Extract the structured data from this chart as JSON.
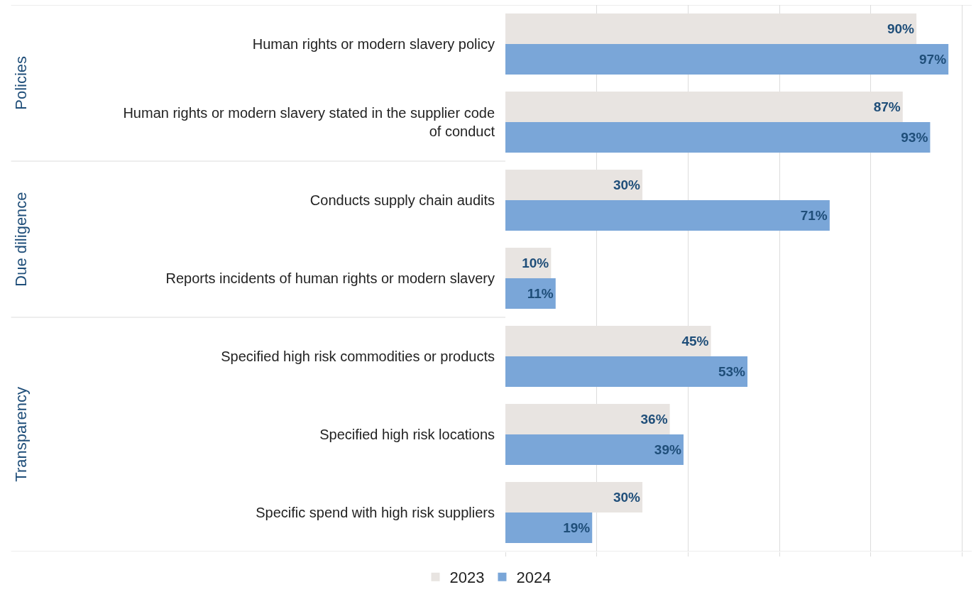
{
  "chart_data": {
    "type": "bar",
    "orientation": "horizontal",
    "categories": [
      "Human rights or modern slavery policy",
      "Human rights or modern slavery stated in the supplier code of conduct",
      "Conducts supply chain audits",
      "Reports incidents of human rights or modern slavery",
      "Specified high risk commodities or products",
      "Specified high risk locations",
      "Specific spend with high risk suppliers"
    ],
    "series": [
      {
        "name": "2023",
        "color": "#e8e4e1",
        "values": [
          90,
          87,
          30,
          10,
          45,
          36,
          30
        ],
        "value_labels": [
          "90%",
          "87%",
          "30%",
          "10%",
          "45%",
          "36%",
          "30%"
        ]
      },
      {
        "name": "2024",
        "color": "#7aa6d8",
        "values": [
          97,
          93,
          71,
          11,
          53,
          39,
          19
        ],
        "value_labels": [
          "97%",
          "93%",
          "71%",
          "11%",
          "53%",
          "39%",
          "19%"
        ]
      }
    ],
    "tick_labels": "y",
    "grid": "x",
    "legend": "bottom",
    "annotations": [
      "Policies",
      "Due diligence",
      "Transparency"
    ]
  }
}
